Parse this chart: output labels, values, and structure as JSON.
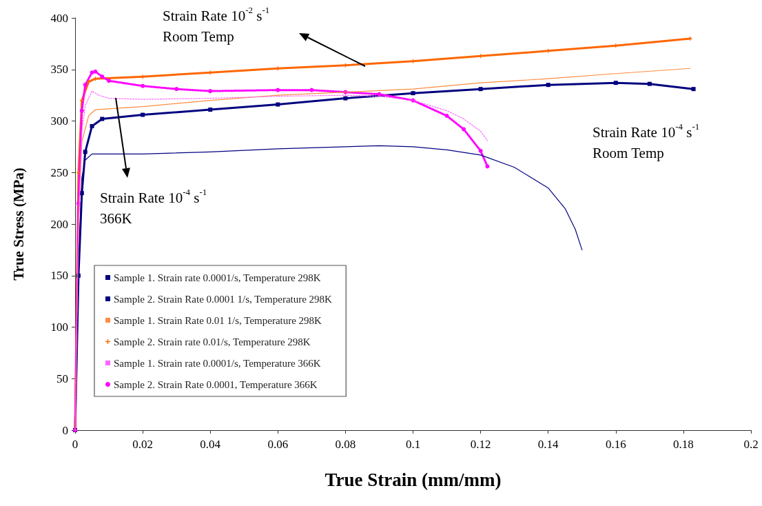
{
  "chart_data": {
    "type": "line",
    "xlabel": "True Strain (mm/mm)",
    "ylabel": "True Stress (MPa)",
    "xlim": [
      0,
      0.2
    ],
    "xticks": [
      0,
      0.02,
      0.04,
      0.06,
      0.08,
      0.1,
      0.12,
      0.14,
      0.16,
      0.18,
      0.2
    ],
    "ylim": [
      0,
      400
    ],
    "yticks": [
      0,
      50,
      100,
      150,
      200,
      250,
      300,
      350,
      400
    ],
    "grid": false,
    "legend": "bottom left",
    "marker": "none",
    "line_style": "solid",
    "annotations": [
      "Strain Rate 10$^{-2}$ s$^{-1}$\nRoom Temp",
      "Strain Rate 10$^{-4}$ s$^{-1}$\nRoom Temp",
      "Strain Rate 10$^{-4}$ s$^{-1}$\n366K"
    ],
    "series": [
      {
        "name": "Sample 1. Strain rate 0.0001/s, Temperature 298K",
        "color": "#000080",
        "x": [
          0,
          0.001,
          0.002,
          0.003,
          0.005,
          0.02,
          0.04,
          0.06,
          0.08,
          0.09,
          0.1,
          0.11,
          0.12,
          0.13,
          0.14,
          0.145,
          0.148,
          0.15
        ],
        "values": [
          0,
          150,
          245,
          262,
          268,
          268,
          270,
          273,
          275,
          276,
          275,
          272,
          267,
          255,
          235,
          215,
          195,
          175
        ]
      },
      {
        "name": "Sample 2. Strain Rate 0.0001 1/s, Temperature 298K",
        "color": "#000080",
        "marker": "square",
        "x": [
          0,
          0.001,
          0.002,
          0.003,
          0.005,
          0.008,
          0.02,
          0.04,
          0.06,
          0.08,
          0.1,
          0.12,
          0.14,
          0.16,
          0.17,
          0.183
        ],
        "values": [
          0,
          150,
          230,
          270,
          295,
          302,
          306,
          311,
          316,
          322,
          327,
          331,
          335,
          337,
          336,
          331
        ]
      },
      {
        "name": "Sample 1. Strain Rate 0.01 1/s, Temperature 298K",
        "color": "#ff8c40",
        "x": [
          0,
          0.001,
          0.002,
          0.004,
          0.006,
          0.02,
          0.04,
          0.06,
          0.08,
          0.1,
          0.12,
          0.14,
          0.16,
          0.182
        ],
        "values": [
          0,
          200,
          280,
          305,
          311,
          314,
          320,
          325,
          328,
          331,
          337,
          341,
          346,
          351
        ]
      },
      {
        "name": "Sample 2. Strain rate 0.01/s, Temperature 298K",
        "color": "#ff6600",
        "marker": "cross",
        "x": [
          0,
          0.001,
          0.002,
          0.004,
          0.006,
          0.02,
          0.04,
          0.06,
          0.08,
          0.1,
          0.12,
          0.14,
          0.16,
          0.182
        ],
        "values": [
          0,
          250,
          320,
          338,
          341,
          343,
          347,
          351,
          354,
          358,
          363,
          368,
          373,
          380
        ]
      },
      {
        "name": "Sample 1. Strain rate 0.0001/s, Temperature 366K",
        "color": "#ff66ff",
        "line_style": "dotted",
        "x": [
          0,
          0.001,
          0.002,
          0.003,
          0.005,
          0.007,
          0.01,
          0.02,
          0.04,
          0.06,
          0.08,
          0.09,
          0.1,
          0.11,
          0.115,
          0.12,
          0.122
        ],
        "values": [
          0,
          200,
          290,
          315,
          329,
          325,
          322,
          321,
          322,
          324,
          325,
          324,
          320,
          310,
          302,
          290,
          281
        ]
      },
      {
        "name": "Sample 2. Strain Rate 0.0001, Temperature 366K",
        "color": "#ff00ff",
        "line_style": "dotted",
        "marker": "circle",
        "x": [
          0,
          0.001,
          0.002,
          0.003,
          0.005,
          0.006,
          0.008,
          0.01,
          0.02,
          0.03,
          0.04,
          0.06,
          0.07,
          0.08,
          0.09,
          0.1,
          0.11,
          0.115,
          0.12,
          0.122
        ],
        "values": [
          0,
          220,
          310,
          335,
          347,
          348,
          343,
          339,
          334,
          331,
          329,
          330,
          330,
          328,
          326,
          320,
          305,
          292,
          271,
          256
        ]
      }
    ]
  }
}
